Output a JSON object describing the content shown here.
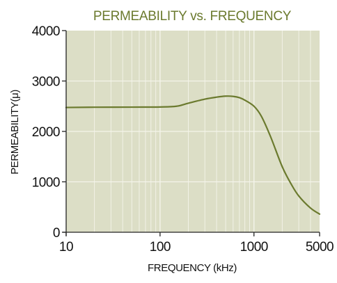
{
  "chart_data": {
    "type": "line",
    "title": "PERMEABILITY vs. FREQUENCY",
    "xlabel": "FREQUENCY (kHz)",
    "ylabel": "PERMEABILITY(μ)",
    "xscale": "log",
    "xlim": [
      10,
      5000
    ],
    "ylim": [
      0,
      4000
    ],
    "x_ticks": [
      {
        "value": 10,
        "label": "10"
      },
      {
        "value": 100,
        "label": "100"
      },
      {
        "value": 1000,
        "label": "1000"
      },
      {
        "value": 5000,
        "label": "5000"
      }
    ],
    "y_ticks": [
      {
        "value": 0,
        "label": "0"
      },
      {
        "value": 1000,
        "label": "1000"
      },
      {
        "value": 2000,
        "label": "2000"
      },
      {
        "value": 3000,
        "label": "3000"
      },
      {
        "value": 4000,
        "label": "4000"
      }
    ],
    "grid": true,
    "series": [
      {
        "values": [
          {
            "x": 10,
            "y": 2475
          },
          {
            "x": 20,
            "y": 2480
          },
          {
            "x": 50,
            "y": 2482
          },
          {
            "x": 100,
            "y": 2485
          },
          {
            "x": 150,
            "y": 2500
          },
          {
            "x": 200,
            "y": 2560
          },
          {
            "x": 300,
            "y": 2640
          },
          {
            "x": 400,
            "y": 2680
          },
          {
            "x": 500,
            "y": 2700
          },
          {
            "x": 600,
            "y": 2695
          },
          {
            "x": 700,
            "y": 2670
          },
          {
            "x": 800,
            "y": 2620
          },
          {
            "x": 1000,
            "y": 2500
          },
          {
            "x": 1200,
            "y": 2300
          },
          {
            "x": 1500,
            "y": 1900
          },
          {
            "x": 2000,
            "y": 1300
          },
          {
            "x": 2500,
            "y": 950
          },
          {
            "x": 3000,
            "y": 720
          },
          {
            "x": 4000,
            "y": 480
          },
          {
            "x": 5000,
            "y": 360
          }
        ]
      }
    ]
  },
  "colors": {
    "plot_background": "#dcdec6",
    "grid_line": "#f4f4ea",
    "series_line": "#6b7a2e",
    "title": "#6b7a2e",
    "axis": "#222222",
    "text": "#111111"
  }
}
